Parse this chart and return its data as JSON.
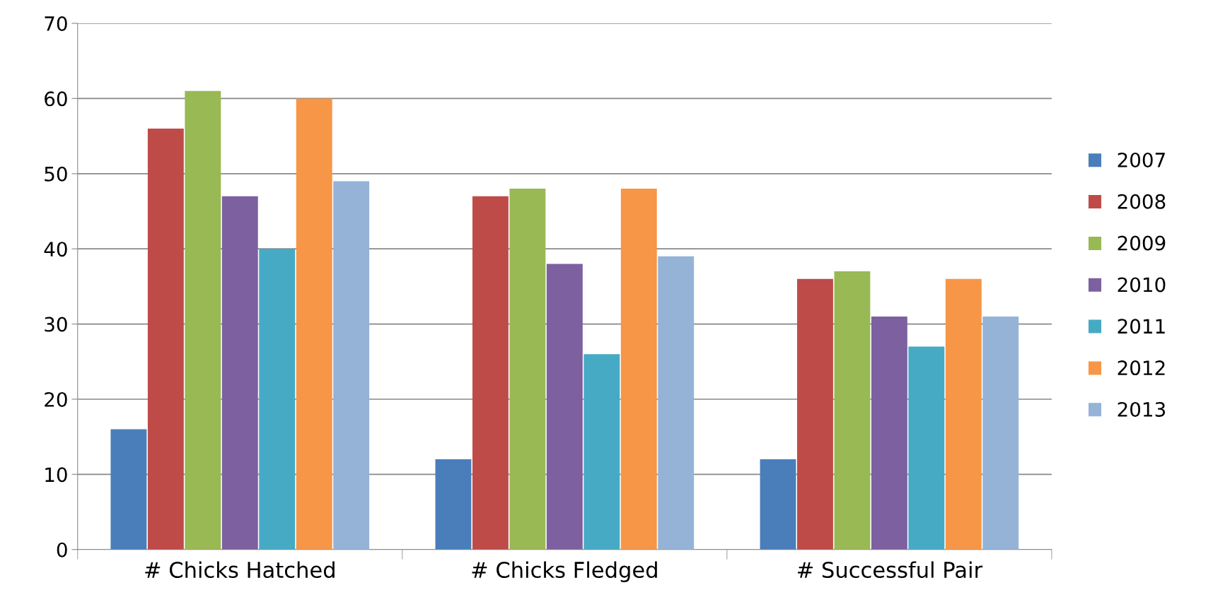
{
  "chart_data": {
    "type": "bar",
    "categories": [
      "# Chicks Hatched",
      "# Chicks Fledged",
      "# Successful Pair"
    ],
    "series": [
      {
        "name": "2007",
        "color": "#4a7ebb",
        "values": [
          16,
          12,
          12
        ]
      },
      {
        "name": "2008",
        "color": "#be4b48",
        "values": [
          56,
          47,
          36
        ]
      },
      {
        "name": "2009",
        "color": "#98b954",
        "values": [
          61,
          48,
          37
        ]
      },
      {
        "name": "2010",
        "color": "#7d60a0",
        "values": [
          47,
          38,
          31
        ]
      },
      {
        "name": "2011",
        "color": "#46aac5",
        "values": [
          40,
          26,
          27
        ]
      },
      {
        "name": "2012",
        "color": "#f79646",
        "values": [
          60,
          48,
          36
        ]
      },
      {
        "name": "2013",
        "color": "#95b3d7",
        "values": [
          49,
          39,
          31
        ]
      }
    ],
    "ylim": [
      0,
      70
    ],
    "yticks": [
      0,
      10,
      20,
      30,
      40,
      50,
      60,
      70
    ],
    "grid": "y",
    "legend": "right"
  }
}
